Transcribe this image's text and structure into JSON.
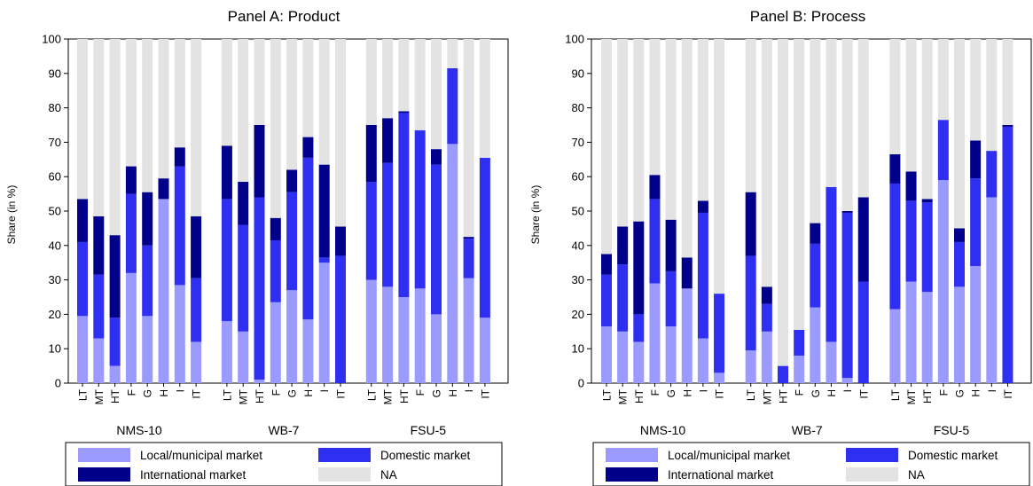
{
  "chart_data": [
    {
      "type": "bar",
      "stacked": true,
      "title": "Panel A: Product",
      "ylabel": "Share (in %)",
      "ylim": [
        0,
        100
      ],
      "yticks": [
        0,
        10,
        20,
        30,
        40,
        50,
        60,
        70,
        80,
        90,
        100
      ],
      "groups": [
        {
          "name": "NMS-10",
          "categories": [
            "LT",
            "MT",
            "HT",
            "F",
            "G",
            "H",
            "I",
            "IT"
          ]
        },
        {
          "name": "WB-7",
          "categories": [
            "LT",
            "MT",
            "HT",
            "F",
            "G",
            "H",
            "I",
            "IT"
          ]
        },
        {
          "name": "FSU-5",
          "categories": [
            "LT",
            "MT",
            "HT",
            "F",
            "G",
            "H",
            "I",
            "IT"
          ]
        }
      ],
      "series": [
        {
          "name": "Local/municipal market",
          "values": [
            19.5,
            13,
            5,
            32,
            19.5,
            53.5,
            28.5,
            12,
            18,
            15,
            1,
            23.5,
            27,
            18.5,
            35,
            0,
            30,
            28,
            25,
            27.5,
            20,
            69.5,
            30.5,
            19
          ]
        },
        {
          "name": "Domestic market",
          "values": [
            21.5,
            18.5,
            14,
            23,
            20.5,
            0,
            34.5,
            18.5,
            35.5,
            31,
            53,
            18,
            28.5,
            47,
            1.5,
            37,
            28.5,
            36,
            53.5,
            46,
            43.5,
            22,
            11.5,
            46.5
          ]
        },
        {
          "name": "International market",
          "values": [
            12.5,
            17,
            24,
            8,
            15.5,
            6,
            5.5,
            18,
            15.5,
            12.5,
            21,
            6.5,
            6.5,
            6,
            27,
            8.5,
            16.5,
            13,
            0.5,
            0,
            4.5,
            0,
            0.5,
            0
          ]
        },
        {
          "name": "NA",
          "values": [
            46.5,
            51.5,
            57,
            37,
            44.5,
            40.5,
            31.5,
            51.5,
            31,
            41.5,
            25,
            52,
            38,
            28.5,
            36.5,
            54.5,
            25,
            23,
            21,
            26.5,
            32,
            8.5,
            57.5,
            34.5
          ]
        }
      ]
    },
    {
      "type": "bar",
      "stacked": true,
      "title": "Panel B: Process",
      "ylabel": "Share (in %)",
      "ylim": [
        0,
        100
      ],
      "yticks": [
        0,
        10,
        20,
        30,
        40,
        50,
        60,
        70,
        80,
        90,
        100
      ],
      "groups": [
        {
          "name": "NMS-10",
          "categories": [
            "LT",
            "MT",
            "HT",
            "F",
            "G",
            "H",
            "I",
            "IT"
          ]
        },
        {
          "name": "WB-7",
          "categories": [
            "LT",
            "MT",
            "HT",
            "F",
            "G",
            "H",
            "I",
            "IT"
          ]
        },
        {
          "name": "FSU-5",
          "categories": [
            "LT",
            "MT",
            "HT",
            "F",
            "G",
            "H",
            "I",
            "IT"
          ]
        }
      ],
      "series": [
        {
          "name": "Local/municipal market",
          "values": [
            16.5,
            15,
            12,
            29,
            16.5,
            27.5,
            13,
            3,
            9.5,
            15,
            0,
            8,
            22,
            12,
            1.5,
            0,
            21.5,
            29.5,
            26.5,
            59,
            28,
            34,
            54,
            0
          ]
        },
        {
          "name": "Domestic market",
          "values": [
            15,
            19.5,
            8,
            24.5,
            16,
            0,
            36.5,
            23,
            27.5,
            8,
            5,
            7.5,
            18.5,
            45,
            48,
            29.5,
            36.5,
            23.5,
            26,
            17.5,
            13,
            25.5,
            13.5,
            74.5
          ]
        },
        {
          "name": "International market",
          "values": [
            6,
            11,
            27,
            7,
            15,
            9,
            3.5,
            0,
            18.5,
            5,
            0,
            0,
            6,
            0,
            0.5,
            24.5,
            8.5,
            8.5,
            1,
            0,
            4,
            11,
            0,
            0.5
          ]
        },
        {
          "name": "NA",
          "values": [
            62.5,
            54.5,
            53,
            39.5,
            52.5,
            63.5,
            47,
            74,
            44.5,
            72,
            95,
            84.5,
            53.5,
            43,
            50,
            46,
            33.5,
            38.5,
            46.5,
            23.5,
            55,
            29.5,
            32.5,
            25
          ]
        }
      ]
    }
  ],
  "legend": {
    "items": [
      {
        "label": "Local/municipal market",
        "color": "#9b9bff"
      },
      {
        "label": "Domestic market",
        "color": "#2f2ff2"
      },
      {
        "label": "International market",
        "color": "#00008b"
      },
      {
        "label": "NA",
        "color": "#e3e3e3"
      }
    ]
  },
  "colors": {
    "local": "#9b9bff",
    "domestic": "#2f2ff2",
    "international": "#00008b",
    "na": "#e3e3e3",
    "axis": "#000000"
  }
}
